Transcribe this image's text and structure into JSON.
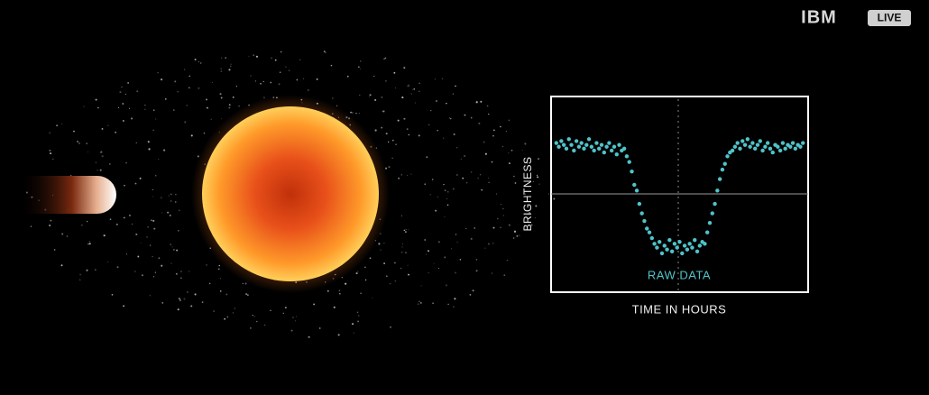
{
  "header": {
    "brand": "IBM",
    "badge": "LIVE"
  },
  "chart_data": {
    "type": "scatter",
    "annotation": "RAW DATA",
    "xlabel": "TIME IN HOURS",
    "ylabel": "BRIGHTNESS",
    "color": "#4fc3c9",
    "xlim": [
      0,
      100
    ],
    "ylim": [
      0,
      100
    ],
    "x": [
      1,
      2,
      3,
      4,
      5,
      6,
      7,
      8,
      9,
      10,
      11,
      12,
      13,
      14,
      15,
      16,
      17,
      18,
      19,
      20,
      21,
      22,
      23,
      24,
      25,
      26,
      27,
      28,
      29,
      30,
      31,
      32,
      33,
      34,
      35,
      36,
      37,
      38,
      39,
      40,
      41,
      42,
      43,
      44,
      45,
      46,
      47,
      48,
      49,
      50,
      51,
      52,
      53,
      54,
      55,
      56,
      57,
      58,
      59,
      60,
      61,
      62,
      63,
      64,
      65,
      66,
      67,
      68,
      69,
      70,
      71,
      72,
      73,
      74,
      75,
      76,
      77,
      78,
      79,
      80,
      81,
      82,
      83,
      84,
      85,
      86,
      87,
      88,
      89,
      90,
      91,
      92,
      93,
      94,
      95,
      96,
      97,
      98,
      99
    ],
    "values": [
      77,
      75,
      78,
      76,
      74,
      79,
      76,
      73,
      78,
      75,
      77,
      74,
      76,
      79,
      75,
      73,
      77,
      74,
      76,
      72,
      75,
      77,
      73,
      75,
      71,
      76,
      73,
      74,
      70,
      67,
      62,
      55,
      52,
      45,
      40,
      36,
      32,
      30,
      27,
      24,
      22,
      25,
      19,
      23,
      21,
      26,
      20,
      24,
      22,
      25,
      19,
      23,
      21,
      24,
      22,
      26,
      20,
      23,
      25,
      24,
      30,
      35,
      40,
      45,
      52,
      58,
      63,
      66,
      70,
      72,
      73,
      75,
      77,
      74,
      78,
      76,
      79,
      75,
      77,
      74,
      76,
      78,
      73,
      75,
      77,
      74,
      72,
      76,
      75,
      73,
      77,
      74,
      76,
      75,
      77,
      74,
      76,
      75,
      77
    ]
  }
}
